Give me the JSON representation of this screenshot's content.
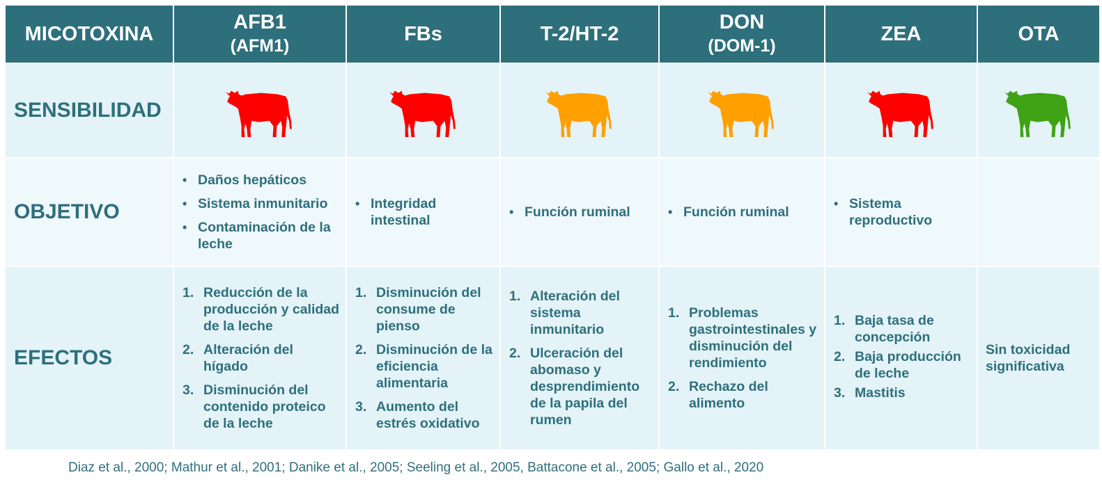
{
  "header": {
    "label": "MICOTOXINA",
    "columns": [
      {
        "name": "AFB1",
        "sub": "(AFM1)"
      },
      {
        "name": "FBs",
        "sub": ""
      },
      {
        "name": "T-2/HT-2",
        "sub": ""
      },
      {
        "name": "DON",
        "sub": "(DOM-1)"
      },
      {
        "name": "ZEA",
        "sub": ""
      },
      {
        "name": "OTA",
        "sub": ""
      }
    ]
  },
  "rows": {
    "sensibilidad": {
      "label": "SENSIBILIDAD",
      "cow_icons": [
        {
          "icon": "cow-icon",
          "level": "alta",
          "color": "#ff0000"
        },
        {
          "icon": "cow-icon",
          "level": "alta",
          "color": "#ff0000"
        },
        {
          "icon": "cow-icon",
          "level": "media",
          "color": "#ff9f00"
        },
        {
          "icon": "cow-icon",
          "level": "media",
          "color": "#ff9f00"
        },
        {
          "icon": "cow-icon",
          "level": "alta",
          "color": "#ff0000"
        },
        {
          "icon": "cow-icon",
          "level": "baja",
          "color": "#3fa214"
        }
      ]
    },
    "objetivo": {
      "label": "OBJETIVO",
      "cells": [
        [
          "Daños hepáticos",
          "Sistema inmunitario",
          "Contaminación de la leche"
        ],
        [
          "Integridad intestinal"
        ],
        [
          "Función ruminal"
        ],
        [
          "Función ruminal"
        ],
        [
          "Sistema reproductivo"
        ],
        []
      ]
    },
    "efectos": {
      "label": "EFECTOS",
      "cells": [
        [
          "Reducción de la producción y calidad de la leche",
          "Alteración del hígado",
          "Disminución del contenido proteico de la leche"
        ],
        [
          "Disminución del consume de pienso",
          "Disminución de la eficiencia alimentaria",
          "Aumento del estrés oxidativo"
        ],
        [
          "Alteración del sistema inmunitario",
          "Ulceración del abomaso y desprendimiento de la papila del rumen"
        ],
        [
          "Problemas gastrointestinales y disminución del rendimiento",
          "Rechazo del alimento"
        ],
        [
          "Baja tasa de concepción",
          "Baja producción de leche",
          "Mastitis"
        ],
        []
      ],
      "ota_text": "Sin toxicidad significativa"
    }
  },
  "citation": "Diaz et al., 2000; Mathur et al., 2001; Danike et al., 2005; Seeling et al., 2005, Battacone et al., 2005; Gallo et al., 2020",
  "colors": {
    "header_bg": "#2e6f7c",
    "text": "#2e6f7c",
    "row_bg_light": "#e3f3f7",
    "row_bg_lighter": "#eff8fb",
    "high": "#ff0000",
    "medium": "#ff9f00",
    "low": "#3fa214"
  }
}
